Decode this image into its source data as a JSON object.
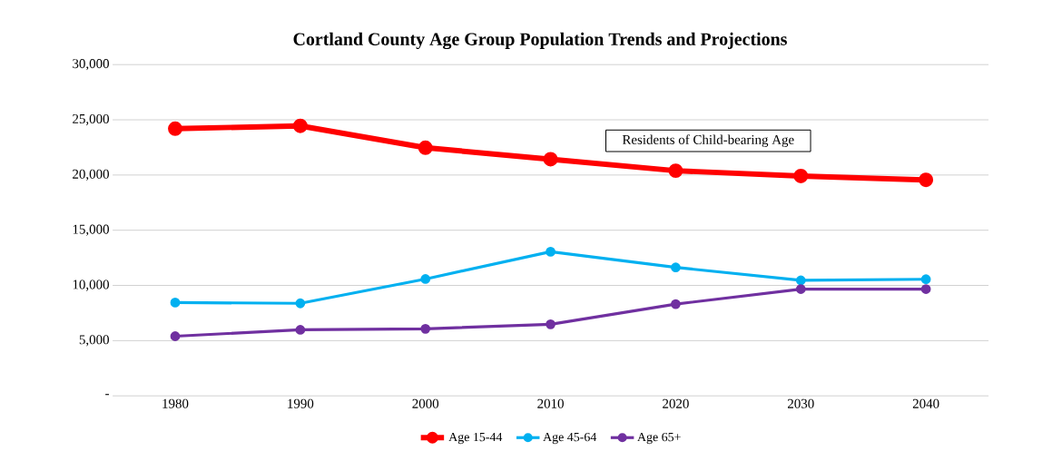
{
  "chart_data": {
    "type": "line",
    "title": "Cortland County Age Group Population Trends and Projections",
    "categories": [
      "1980",
      "1990",
      "2000",
      "2010",
      "2020",
      "2030",
      "2040"
    ],
    "series": [
      {
        "name": "Age 15-44",
        "color": "#ff0000",
        "values": [
          24200,
          24450,
          22470,
          21430,
          20390,
          19910,
          19560
        ]
      },
      {
        "name": "Age 45-64",
        "color": "#00b0f0",
        "values": [
          8450,
          8380,
          10580,
          13050,
          11630,
          10460,
          10560
        ]
      },
      {
        "name": "Age 65+",
        "color": "#7030a0",
        "values": [
          5400,
          5980,
          6070,
          6480,
          8310,
          9670,
          9670
        ]
      }
    ],
    "ylim": [
      0,
      30000
    ],
    "yticks": [
      {
        "value": 0,
        "label": "-"
      },
      {
        "value": 5000,
        "label": "5,000"
      },
      {
        "value": 10000,
        "label": "10,000"
      },
      {
        "value": 15000,
        "label": "15,000"
      },
      {
        "value": 20000,
        "label": "20,000"
      },
      {
        "value": 25000,
        "label": "25,000"
      },
      {
        "value": 30000,
        "label": "30,000"
      }
    ],
    "annotations": [
      "Residents of Child-bearing Age"
    ],
    "grid": "y",
    "legend": "bottom",
    "marker": "circle",
    "line_style": "solid"
  }
}
